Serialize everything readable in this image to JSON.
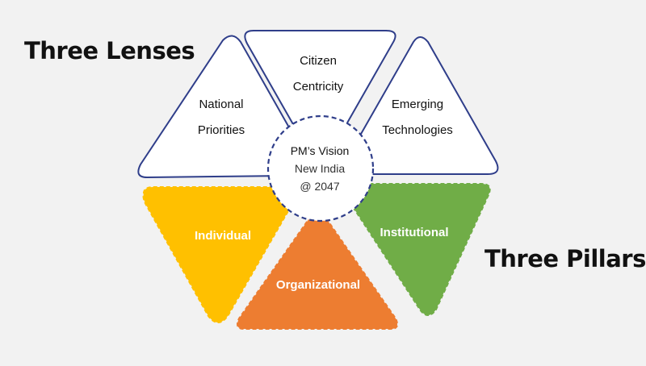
{
  "headings": {
    "lenses": "Three Lenses",
    "pillars": "Three Pillars"
  },
  "lenses": [
    {
      "line1": "National",
      "line2": "Priorities"
    },
    {
      "line1": "Citizen",
      "line2": "Centricity"
    },
    {
      "line1": "Emerging",
      "line2": "Technologies"
    }
  ],
  "pillars": [
    {
      "label": "Individual",
      "color": "#ffc000"
    },
    {
      "label": "Organizational",
      "color": "#ed7d31"
    },
    {
      "label": "Institutional",
      "color": "#70ad47"
    }
  ],
  "hub": {
    "line1": "PM’s Vision",
    "line2": "New India",
    "line3": "@ 2047"
  },
  "colors": {
    "lens_stroke": "#2f3e8a",
    "hub_stroke": "#2f3e8a",
    "background": "#f2f2f2"
  }
}
